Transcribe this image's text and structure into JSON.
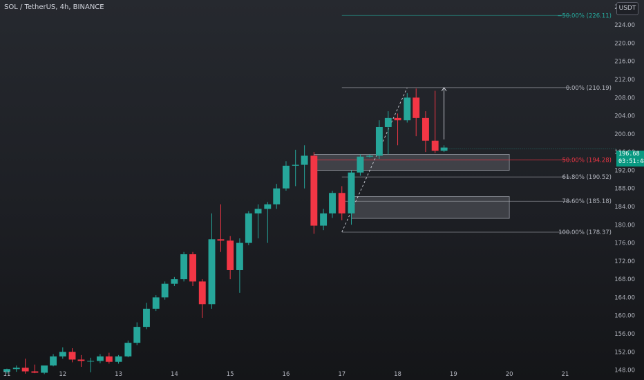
{
  "header": {
    "symbol_title": "SOL / TetherUS, 4h, BINANCE"
  },
  "currency": "USDT",
  "last_price": {
    "value": "196.68",
    "countdown": "03:51:48"
  },
  "colors": {
    "up": "#26a69a",
    "down": "#f23645",
    "fib_line": "#b2b5be",
    "fib_ext": "#26a69a",
    "fib_mid": "#f23645"
  },
  "chart_data": {
    "type": "candlestick",
    "ylim": [
      145.8,
      229.5
    ],
    "xlim": [
      11.0,
      21.1
    ],
    "y_ticks": [
      "148.00",
      "152.00",
      "156.00",
      "160.00",
      "164.00",
      "168.00",
      "172.00",
      "176.00",
      "180.00",
      "184.00",
      "188.00",
      "192.00",
      "196.00",
      "200.00",
      "204.00",
      "208.00",
      "212.00",
      "216.00",
      "220.00",
      "224.00",
      "228.00"
    ],
    "x_ticks": [
      {
        "value": 11,
        "label": "11"
      },
      {
        "value": 12,
        "label": "12"
      },
      {
        "value": 13,
        "label": "13"
      },
      {
        "value": 14,
        "label": "14"
      },
      {
        "value": 15,
        "label": "15"
      },
      {
        "value": 16,
        "label": "16"
      },
      {
        "value": 17,
        "label": "17"
      },
      {
        "value": 18,
        "label": "18"
      },
      {
        "value": 19,
        "label": "19"
      },
      {
        "value": 20,
        "label": "20"
      },
      {
        "value": 21,
        "label": "21"
      }
    ],
    "candles": [
      {
        "t": 11.0,
        "o": 147.6,
        "h": 148.3,
        "l": 147.2,
        "c": 148.2
      },
      {
        "t": 11.17,
        "o": 148.2,
        "h": 149.0,
        "l": 147.6,
        "c": 148.5
      },
      {
        "t": 11.33,
        "o": 148.5,
        "h": 150.5,
        "l": 147.2,
        "c": 147.7
      },
      {
        "t": 11.5,
        "o": 147.7,
        "h": 149.2,
        "l": 147.3,
        "c": 147.4
      },
      {
        "t": 11.67,
        "o": 147.4,
        "h": 149.0,
        "l": 147.1,
        "c": 149.0
      },
      {
        "t": 11.83,
        "o": 149.0,
        "h": 151.5,
        "l": 148.8,
        "c": 151.0
      },
      {
        "t": 12.0,
        "o": 151.0,
        "h": 153.0,
        "l": 150.5,
        "c": 152.0
      },
      {
        "t": 12.17,
        "o": 152.0,
        "h": 152.8,
        "l": 149.7,
        "c": 150.3
      },
      {
        "t": 12.33,
        "o": 150.3,
        "h": 151.3,
        "l": 148.7,
        "c": 150.0
      },
      {
        "t": 12.5,
        "o": 150.0,
        "h": 150.7,
        "l": 147.5,
        "c": 150.0
      },
      {
        "t": 12.67,
        "o": 150.0,
        "h": 151.5,
        "l": 149.5,
        "c": 151.0
      },
      {
        "t": 12.83,
        "o": 151.0,
        "h": 151.8,
        "l": 149.4,
        "c": 149.8
      },
      {
        "t": 13.0,
        "o": 149.8,
        "h": 151.3,
        "l": 149.4,
        "c": 151.0
      },
      {
        "t": 13.17,
        "o": 151.0,
        "h": 154.5,
        "l": 150.8,
        "c": 154.0
      },
      {
        "t": 13.33,
        "o": 154.0,
        "h": 158.5,
        "l": 153.5,
        "c": 157.5
      },
      {
        "t": 13.5,
        "o": 157.5,
        "h": 162.8,
        "l": 157.0,
        "c": 161.5
      },
      {
        "t": 13.67,
        "o": 161.5,
        "h": 164.5,
        "l": 161.0,
        "c": 164.0
      },
      {
        "t": 13.83,
        "o": 164.0,
        "h": 167.5,
        "l": 163.5,
        "c": 167.0
      },
      {
        "t": 14.0,
        "o": 167.0,
        "h": 168.5,
        "l": 166.5,
        "c": 168.0
      },
      {
        "t": 14.17,
        "o": 168.0,
        "h": 174.0,
        "l": 167.5,
        "c": 173.5
      },
      {
        "t": 14.33,
        "o": 173.5,
        "h": 174.0,
        "l": 166.5,
        "c": 167.5
      },
      {
        "t": 14.5,
        "o": 167.5,
        "h": 168.0,
        "l": 159.5,
        "c": 162.5
      },
      {
        "t": 14.67,
        "o": 162.5,
        "h": 182.5,
        "l": 161.5,
        "c": 176.8
      },
      {
        "t": 14.83,
        "o": 176.8,
        "h": 184.5,
        "l": 174.0,
        "c": 176.5
      },
      {
        "t": 15.0,
        "o": 176.5,
        "h": 177.5,
        "l": 168.0,
        "c": 170.0
      },
      {
        "t": 15.17,
        "o": 170.0,
        "h": 177.0,
        "l": 165.0,
        "c": 176.0
      },
      {
        "t": 15.33,
        "o": 176.0,
        "h": 183.0,
        "l": 175.5,
        "c": 182.5
      },
      {
        "t": 15.5,
        "o": 182.5,
        "h": 184.5,
        "l": 177.0,
        "c": 183.5
      },
      {
        "t": 15.67,
        "o": 183.5,
        "h": 185.0,
        "l": 176.0,
        "c": 184.5
      },
      {
        "t": 15.83,
        "o": 184.5,
        "h": 189.0,
        "l": 183.5,
        "c": 188.0
      },
      {
        "t": 16.0,
        "o": 188.0,
        "h": 194.0,
        "l": 187.5,
        "c": 193.0
      },
      {
        "t": 16.17,
        "o": 193.0,
        "h": 196.5,
        "l": 188.5,
        "c": 193.2
      },
      {
        "t": 16.33,
        "o": 193.2,
        "h": 197.5,
        "l": 188.0,
        "c": 195.2
      },
      {
        "t": 16.5,
        "o": 195.2,
        "h": 196.0,
        "l": 178.0,
        "c": 179.8
      },
      {
        "t": 16.67,
        "o": 179.8,
        "h": 183.5,
        "l": 178.8,
        "c": 182.5
      },
      {
        "t": 16.83,
        "o": 182.5,
        "h": 187.5,
        "l": 181.5,
        "c": 187.0
      },
      {
        "t": 17.0,
        "o": 187.0,
        "h": 188.5,
        "l": 181.0,
        "c": 182.5
      },
      {
        "t": 17.17,
        "o": 182.5,
        "h": 192.0,
        "l": 180.0,
        "c": 191.5
      },
      {
        "t": 17.33,
        "o": 191.5,
        "h": 195.5,
        "l": 190.8,
        "c": 195.0
      },
      {
        "t": 17.5,
        "o": 195.0,
        "h": 195.5,
        "l": 194.8,
        "c": 195.2
      },
      {
        "t": 17.67,
        "o": 195.2,
        "h": 203.0,
        "l": 194.5,
        "c": 201.5
      },
      {
        "t": 17.83,
        "o": 201.5,
        "h": 205.0,
        "l": 195.5,
        "c": 203.5
      },
      {
        "t": 18.0,
        "o": 203.5,
        "h": 204.5,
        "l": 197.5,
        "c": 203.0
      },
      {
        "t": 18.17,
        "o": 203.0,
        "h": 209.0,
        "l": 202.5,
        "c": 208.0
      },
      {
        "t": 18.33,
        "o": 208.0,
        "h": 210.0,
        "l": 199.5,
        "c": 203.5
      },
      {
        "t": 18.5,
        "o": 203.5,
        "h": 205.0,
        "l": 196.0,
        "c": 198.5
      },
      {
        "t": 18.67,
        "o": 198.5,
        "h": 209.5,
        "l": 195.8,
        "c": 196.3
      },
      {
        "t": 18.83,
        "o": 196.3,
        "h": 197.5,
        "l": 196.0,
        "c": 197.0
      }
    ],
    "fib_levels": [
      {
        "label": "−50.00% (226.11)",
        "price": 226.11,
        "style": "ext"
      },
      {
        "label": "0.00% (210.19)",
        "price": 210.19,
        "style": "normal"
      },
      {
        "label": "50.00% (194.28)",
        "price": 194.28,
        "style": "mid"
      },
      {
        "label": "61.80% (190.52)",
        "price": 190.52,
        "style": "normal"
      },
      {
        "label": "78.60% (185.18)",
        "price": 185.18,
        "style": "normal"
      },
      {
        "label": "100.00% (178.37)",
        "price": 178.37,
        "style": "normal"
      }
    ],
    "fib_x_range": [
      17.0,
      21.1
    ],
    "zones": [
      {
        "t1": 16.5,
        "t2": 20.0,
        "p1": 195.5,
        "p2": 192.0
      },
      {
        "t1": 17.17,
        "t2": 20.0,
        "p1": 186.2,
        "p2": 181.4
      }
    ],
    "swing": {
      "t1": 17.0,
      "p1": 178.37,
      "t2": 18.17,
      "p2": 210.19
    },
    "projection": {
      "t": 18.83,
      "p1": 198.8,
      "p2": 210.2
    },
    "last_price_value": 196.68
  }
}
